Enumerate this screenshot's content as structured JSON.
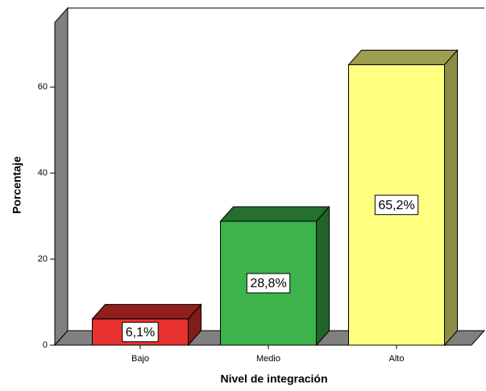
{
  "chart_data": {
    "type": "bar3d",
    "x_label": "Nivel de integración",
    "y_label": "Porcentaje",
    "categories": [
      "Bajo",
      "Medio",
      "Alto"
    ],
    "values": [
      6.1,
      28.8,
      65.2
    ],
    "value_labels": [
      "6,1%",
      "28,8%",
      "65,2%"
    ],
    "colors": [
      "#e8322f",
      "#3cb44b",
      "#ffff80"
    ],
    "ylim": [
      0,
      75
    ],
    "yticks": [
      0,
      20,
      40,
      60
    ]
  }
}
